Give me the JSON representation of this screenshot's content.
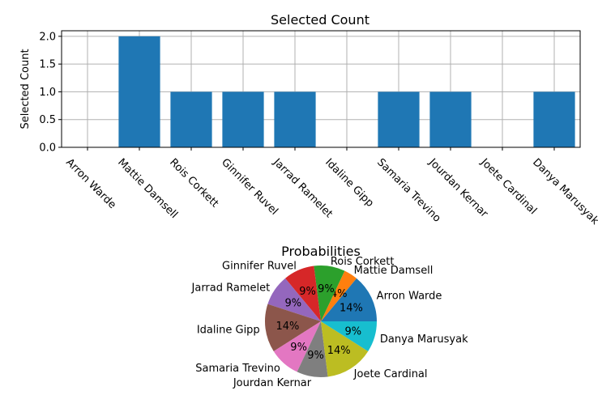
{
  "chart_data": [
    {
      "type": "bar",
      "title": "Selected Count",
      "xlabel": "",
      "ylabel": "Selected Count",
      "categories": [
        "Arron Warde",
        "Mattie Damsell",
        "Rois Corkett",
        "Ginnifer Ruvel",
        "Jarrad Ramelet",
        "Idaline Gipp",
        "Samaria Trevino",
        "Jourdan Kernar",
        "Joete Cardinal",
        "Danya Marusyak"
      ],
      "values": [
        0,
        2,
        1,
        1,
        1,
        0,
        1,
        1,
        0,
        1
      ],
      "ylim": [
        0,
        2.1
      ],
      "yticks": [
        "0.0",
        "0.5",
        "1.0",
        "1.5",
        "2.0"
      ],
      "grid": true,
      "bar_color": "#1f77b4"
    },
    {
      "type": "pie",
      "title": "Probabilities",
      "labels": [
        "Arron Warde",
        "Mattie Damsell",
        "Rois Corkett",
        "Ginnifer Ruvel",
        "Jarrad Ramelet",
        "Idaline Gipp",
        "Samaria Trevino",
        "Jourdan Kernar",
        "Joete Cardinal",
        "Danya Marusyak"
      ],
      "values": [
        14,
        4,
        9,
        9,
        9,
        14,
        9,
        9,
        14,
        9
      ],
      "value_labels": [
        "14%",
        "4%",
        "9%",
        "9%",
        "9%",
        "14%",
        "9%",
        "9%",
        "14%",
        "9%"
      ],
      "colors": [
        "#1f77b4",
        "#ff7f0e",
        "#2ca02c",
        "#d62728",
        "#9467bd",
        "#8c564b",
        "#e377c2",
        "#7f7f7f",
        "#bcbd22",
        "#17becf"
      ]
    }
  ]
}
